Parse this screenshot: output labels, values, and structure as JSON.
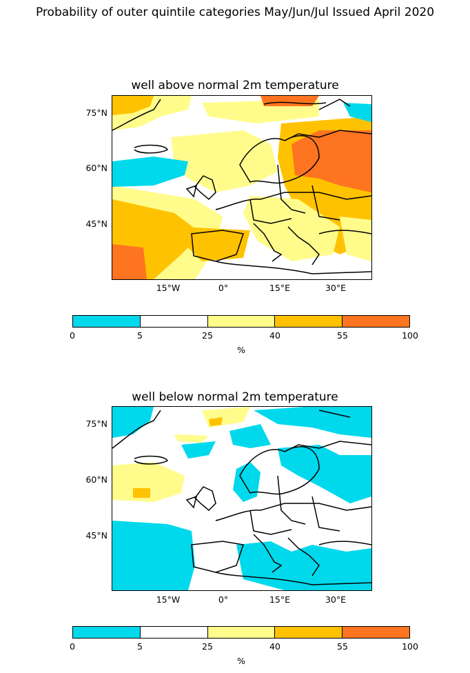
{
  "figure": {
    "title": "Probability of outer quintile categories May/Jun/Jul Issued April 2020"
  },
  "panels": [
    {
      "title": "well above normal 2m temperature",
      "lat_labels": [
        "75°N",
        "60°N",
        "45°N"
      ],
      "lon_labels": [
        "15°W",
        "0°",
        "15°E",
        "30°E"
      ]
    },
    {
      "title": "well below normal 2m temperature",
      "lat_labels": [
        "75°N",
        "60°N",
        "45°N"
      ],
      "lon_labels": [
        "15°W",
        "0°",
        "15°E",
        "30°E"
      ]
    }
  ],
  "colorbar": {
    "ticks": [
      "0",
      "5",
      "25",
      "40",
      "55",
      "100"
    ],
    "unit": "%",
    "colors": [
      "#00d8ec",
      "#ffffff",
      "#fffc8c",
      "#ffc200",
      "#ff7420"
    ]
  },
  "legend_categories": [
    {
      "range": "0-5",
      "color": "#00d8ec"
    },
    {
      "range": "5-25",
      "color": "#ffffff"
    },
    {
      "range": "25-40",
      "color": "#fffc8c"
    },
    {
      "range": "40-55",
      "color": "#ffc200"
    },
    {
      "range": "55-100",
      "color": "#ff7420"
    }
  ]
}
